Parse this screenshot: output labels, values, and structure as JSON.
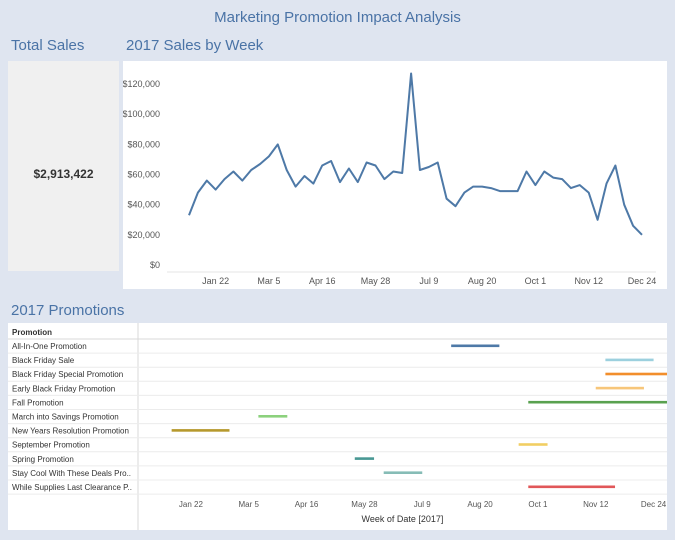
{
  "dashboard": {
    "title": "Marketing Promotion Impact Analysis",
    "total_sales_title": "Total Sales",
    "total_sales_value": "$2,913,422",
    "sales_chart_title": "2017 Sales by Week",
    "promotions_title": "2017 Promotions"
  },
  "colors": {
    "title": "#4a73a6",
    "line": "#4e79a7",
    "background": "#dfe5f0"
  },
  "chart_data": [
    {
      "type": "line",
      "title": "2017 Sales by Week",
      "xlabel": "",
      "ylabel": "",
      "ylim": [
        0,
        130000
      ],
      "yticks": [
        0,
        20000,
        40000,
        60000,
        80000,
        100000,
        120000
      ],
      "ytick_labels": [
        "$0",
        "$20,000",
        "$40,000",
        "$60,000",
        "$80,000",
        "$100,000",
        "$120,000"
      ],
      "xtick_labels": [
        "Jan 22",
        "Mar 5",
        "Apr 16",
        "May 28",
        "Jul 9",
        "Aug 20",
        "Oct 1",
        "Nov 12",
        "Dec 24"
      ],
      "xtick_weeks": [
        3,
        9,
        15,
        21,
        27,
        33,
        39,
        45,
        51
      ],
      "grid": false,
      "series": [
        {
          "values": [
            33000,
            48000,
            56000,
            50000,
            57000,
            62000,
            56000,
            63000,
            67000,
            72000,
            80000,
            63000,
            52000,
            59000,
            54000,
            66000,
            69000,
            55000,
            64000,
            55000,
            68000,
            66000,
            57000,
            62000,
            61000,
            127000,
            63000,
            65000,
            68000,
            44000,
            39000,
            48000,
            52000,
            52000,
            51000,
            49000,
            49000,
            49000,
            62000,
            53000,
            62000,
            58000,
            57000,
            51000,
            53000,
            48000,
            30000,
            54000,
            66000,
            40000,
            26000,
            20000
          ]
        }
      ]
    },
    {
      "type": "gantt",
      "title": "2017 Promotions",
      "row_header": "Promotion",
      "xlabel": "Week of Date [2017]",
      "xtick_labels": [
        "Jan 22",
        "Mar 5",
        "Apr 16",
        "May 28",
        "Jul 9",
        "Aug 20",
        "Oct 1",
        "Nov 12",
        "Dec 24"
      ],
      "xtick_weeks": [
        3,
        9,
        15,
        21,
        27,
        33,
        39,
        45,
        51
      ],
      "rows": [
        {
          "label": "All-In-One Promotion",
          "start_week": 30,
          "end_week": 35,
          "color": "#4e79a7"
        },
        {
          "label": "Black Friday Sale",
          "start_week": 46,
          "end_week": 51,
          "color": "#9cd0de"
        },
        {
          "label": "Black Friday Special Promotion",
          "start_week": 46,
          "end_week": 53,
          "color": "#f28e2b"
        },
        {
          "label": "Early Black Friday Promotion",
          "start_week": 45,
          "end_week": 50,
          "color": "#f7c67a"
        },
        {
          "label": "Fall Promotion",
          "start_week": 38,
          "end_week": 53,
          "color": "#59a14f"
        },
        {
          "label": "March into Savings Promotion",
          "start_week": 10,
          "end_week": 13,
          "color": "#8cd17d"
        },
        {
          "label": "New Years Resolution Promotion",
          "start_week": 1,
          "end_week": 7,
          "color": "#b6992d"
        },
        {
          "label": "September Promotion",
          "start_week": 37,
          "end_week": 40,
          "color": "#f1ce63"
        },
        {
          "label": "Spring Promotion",
          "start_week": 20,
          "end_week": 22,
          "color": "#499894"
        },
        {
          "label": "Stay Cool With These Deals Pro..",
          "start_week": 23,
          "end_week": 27,
          "color": "#86bcb6"
        },
        {
          "label": "While Supplies Last Clearance P..",
          "start_week": 38,
          "end_week": 47,
          "color": "#e15759"
        }
      ]
    }
  ]
}
